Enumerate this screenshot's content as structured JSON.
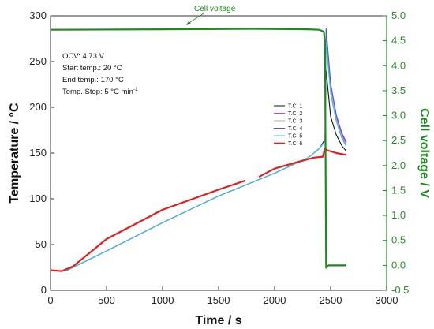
{
  "chart_data": {
    "type": "line",
    "title": "",
    "xlabel": "Time / s",
    "ylabel": "Temperature / °C",
    "y2label": "Cell voltage / V",
    "xlim": [
      0,
      3000
    ],
    "ylim": [
      0,
      300
    ],
    "y2lim": [
      -0.5,
      5.0
    ],
    "x_ticks": [
      0,
      500,
      1000,
      1500,
      2000,
      2500,
      3000
    ],
    "y_ticks": [
      0,
      50,
      100,
      150,
      200,
      250,
      300
    ],
    "y2_ticks": [
      -0.5,
      0.0,
      0.5,
      1.0,
      1.5,
      2.0,
      2.5,
      3.0,
      3.5,
      4.0,
      4.5,
      5.0
    ],
    "x_tick_labels": [
      "0",
      "500",
      "1000",
      "1500",
      "2000",
      "2500",
      "3000"
    ],
    "y_tick_labels": [
      "0",
      "50",
      "100",
      "150",
      "200",
      "250",
      "300"
    ],
    "y2_tick_labels": [
      "-0.5",
      "0.0",
      "0.5",
      "1.0",
      "1.5",
      "2.0",
      "2.5",
      "3.0",
      "3.5",
      "4.0",
      "4.5",
      "5.0"
    ],
    "grid": false,
    "legend_position": "middle-right",
    "annotations": {
      "cell_voltage": "Cell voltage",
      "ocv": "OCV: 4.73 V",
      "start_temp": "Start temp.: 20 °C",
      "end_temp": "End temp.: 170 °C",
      "temp_step": "Temp. Step: 5 °C min",
      "temp_step_sup": "-1"
    },
    "series": [
      {
        "name": "T.C. 1",
        "axis": "left",
        "color": "#111111",
        "x": [
          0,
          100,
          150,
          500,
          1000,
          1500,
          2000,
          2300,
          2400,
          2450,
          2460,
          2500,
          2550,
          2600,
          2640
        ],
        "y": [
          22,
          21,
          22,
          43,
          74,
          103,
          128,
          145,
          155,
          165,
          240,
          190,
          170,
          158,
          152
        ]
      },
      {
        "name": "T.C. 2",
        "axis": "left",
        "color": "#d040d0",
        "x": [
          0,
          100,
          150,
          500,
          1000,
          1500,
          2000,
          2300,
          2400,
          2450,
          2460,
          2500,
          2550,
          2600,
          2640
        ],
        "y": [
          22,
          21,
          22,
          43,
          74,
          103,
          128,
          145,
          155,
          163,
          284,
          225,
          190,
          170,
          160
        ]
      },
      {
        "name": "T.C. 3",
        "axis": "left",
        "color": "#b0a0e0",
        "x": [
          0,
          100,
          150,
          500,
          1000,
          1500,
          2000,
          2300,
          2400,
          2450,
          2460,
          2500,
          2550,
          2600,
          2640
        ],
        "y": [
          22,
          21,
          22,
          43,
          74,
          103,
          128,
          145,
          155,
          163,
          278,
          220,
          187,
          168,
          158
        ]
      },
      {
        "name": "T.C. 4",
        "axis": "left",
        "color": "#5a4fd0",
        "x": [
          0,
          100,
          150,
          500,
          1000,
          1500,
          2000,
          2300,
          2400,
          2450,
          2460,
          2500,
          2550,
          2600,
          2640
        ],
        "y": [
          22,
          21,
          22,
          43,
          74,
          103,
          128,
          145,
          155,
          163,
          286,
          226,
          192,
          172,
          162
        ]
      },
      {
        "name": "T.C. 5",
        "axis": "left",
        "color": "#30c8d0",
        "x": [
          0,
          100,
          150,
          500,
          1000,
          1500,
          2000,
          2300,
          2400,
          2450,
          2460,
          2500,
          2550,
          2600,
          2640
        ],
        "y": [
          22,
          21,
          22,
          43,
          74,
          103,
          128,
          145,
          155,
          163,
          270,
          215,
          185,
          166,
          157
        ]
      },
      {
        "name": "T.C. 6",
        "axis": "left",
        "color": "#e02020",
        "x": [
          0,
          100,
          200,
          500,
          1000,
          1500,
          1740,
          1860,
          2000,
          2200,
          2350,
          2430,
          2450,
          2470,
          2550,
          2640
        ],
        "y": [
          22,
          21,
          26,
          56,
          88,
          110,
          120,
          124,
          133,
          140,
          145,
          146,
          155,
          153,
          150,
          148
        ]
      },
      {
        "name": "Cell voltage",
        "axis": "right",
        "color": "#1e8a1e",
        "x": [
          0,
          1000,
          1800,
          2300,
          2400,
          2440,
          2450,
          2460,
          2480,
          2600,
          2640
        ],
        "y": [
          4.72,
          4.73,
          4.74,
          4.73,
          4.72,
          4.68,
          4.4,
          -0.05,
          0.0,
          0.0,
          0.0
        ]
      }
    ]
  }
}
